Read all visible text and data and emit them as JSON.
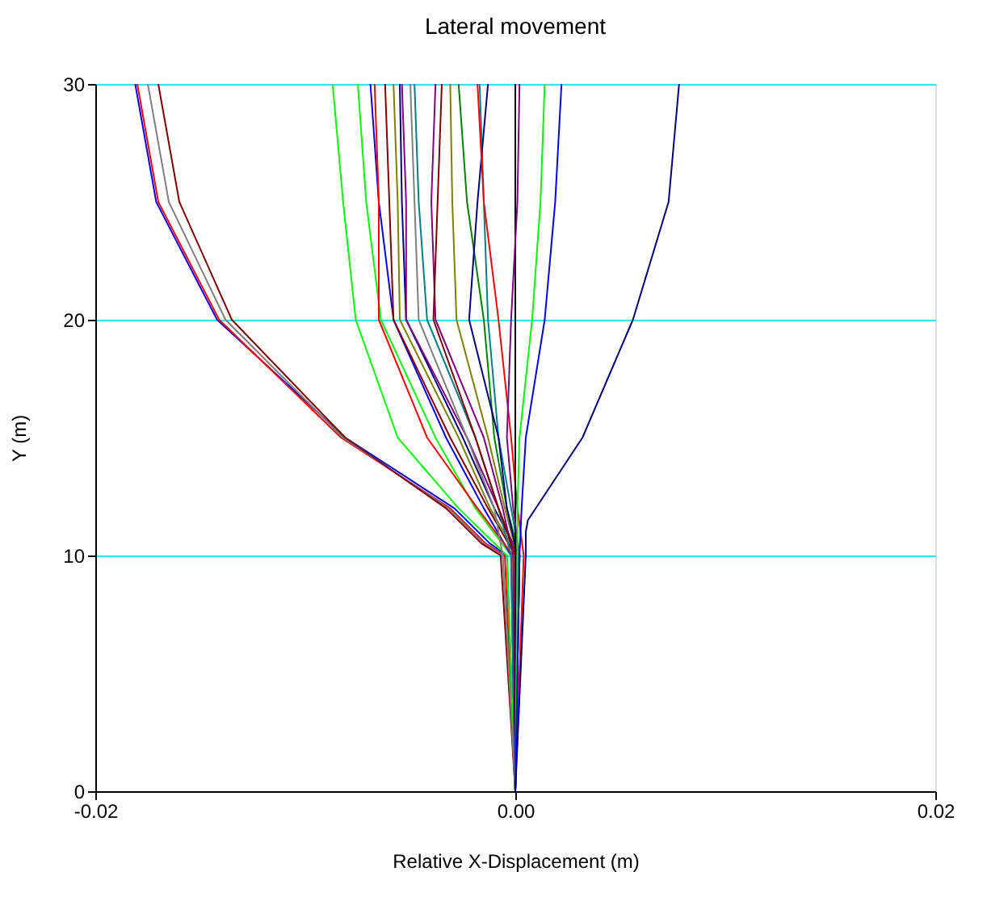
{
  "chart_data": {
    "type": "line",
    "title": "Lateral movement",
    "xlabel": "Relative X-Displacement (m)",
    "ylabel": "Y (m)",
    "xlim": [
      -0.02,
      0.02
    ],
    "xticks": [
      {
        "value": -0.02,
        "label": "-0.02"
      },
      {
        "value": 0,
        "label": "0.00"
      },
      {
        "value": 0.02,
        "label": "0.02"
      }
    ],
    "ylim": [
      0,
      30
    ],
    "yticks": [
      0,
      10,
      20,
      30
    ],
    "grid": "y",
    "legend": false,
    "series": [
      {
        "color": "#0000ff",
        "x": [
          0,
          -0.0004,
          -0.0012,
          -0.0029,
          -0.0081,
          -0.0142,
          -0.0171,
          -0.0181
        ],
        "values": [
          0,
          10,
          10.5,
          12,
          15,
          20,
          25,
          30
        ]
      },
      {
        "color": "#ff0000",
        "x": [
          0,
          -0.0005,
          -0.0014,
          -0.0031,
          -0.0083,
          -0.0141,
          -0.017,
          -0.018
        ],
        "values": [
          0,
          10,
          10.5,
          12,
          15,
          20,
          25,
          30
        ]
      },
      {
        "color": "#808080",
        "x": [
          0,
          -0.0006,
          -0.0015,
          -0.0032,
          -0.0082,
          -0.0138,
          -0.0165,
          -0.0175
        ],
        "values": [
          0,
          10,
          10.5,
          12,
          15,
          20,
          25,
          30
        ]
      },
      {
        "color": "#800000",
        "x": [
          0,
          -0.0007,
          -0.0016,
          -0.0033,
          -0.0081,
          -0.0135,
          -0.016,
          -0.017
        ],
        "values": [
          0,
          10,
          10.5,
          12,
          15,
          20,
          25,
          30
        ]
      },
      {
        "color": "#00ff00",
        "x": [
          0,
          -0.0004,
          -0.0027,
          -0.0056,
          -0.0076,
          -0.0082,
          -0.0087
        ],
        "values": [
          0,
          10,
          12,
          15,
          20,
          25,
          30
        ]
      },
      {
        "color": "#00ff00",
        "x": [
          0,
          -0.0002,
          -0.0019,
          -0.0038,
          -0.0064,
          -0.0071,
          -0.0075
        ],
        "values": [
          0,
          10,
          12,
          15,
          20,
          25,
          30
        ]
      },
      {
        "color": "#0000ff",
        "x": [
          0,
          -0.0002,
          -0.0015,
          -0.0033,
          -0.0058,
          -0.0065,
          -0.0069
        ],
        "values": [
          0,
          10,
          12,
          15,
          20,
          25,
          30
        ]
      },
      {
        "color": "#ff0000",
        "x": [
          0,
          -0.0001,
          -0.0018,
          -0.0042,
          -0.0065,
          -0.0065,
          -0.0067
        ],
        "values": [
          0,
          10,
          12,
          15,
          20,
          25,
          30
        ]
      },
      {
        "color": "#800000",
        "x": [
          0,
          0,
          -0.0013,
          -0.0031,
          -0.0058,
          -0.006,
          -0.0062
        ],
        "values": [
          0,
          10,
          12,
          15,
          20,
          25,
          30
        ]
      },
      {
        "color": "#808000",
        "x": [
          0,
          0.0001,
          -0.0012,
          -0.0027,
          -0.0055,
          -0.0056,
          -0.0058
        ],
        "values": [
          0,
          10,
          12,
          15,
          20,
          25,
          30
        ]
      },
      {
        "color": "#000080",
        "x": [
          0,
          0.0002,
          -0.001,
          -0.0025,
          -0.0052,
          -0.0054,
          -0.0055
        ],
        "values": [
          0,
          10,
          12,
          15,
          20,
          25,
          30
        ]
      },
      {
        "color": "#800080",
        "x": [
          0,
          0.0001,
          -0.0008,
          -0.0023,
          -0.0052,
          -0.0052,
          -0.0054
        ],
        "values": [
          0,
          10,
          12,
          15,
          20,
          25,
          30
        ]
      },
      {
        "color": "#808080",
        "x": [
          0,
          -0.0006,
          -0.001,
          -0.0023,
          -0.0046,
          -0.0048,
          -0.005
        ],
        "values": [
          0,
          10,
          12,
          15,
          20,
          25,
          30
        ]
      },
      {
        "color": "#008080",
        "x": [
          0,
          -0.0002,
          -0.0008,
          -0.0019,
          -0.0042,
          -0.0046,
          -0.0048
        ],
        "values": [
          0,
          10,
          12,
          15,
          20,
          25,
          30
        ]
      },
      {
        "color": "#800080",
        "x": [
          0,
          -0.0001,
          -0.0006,
          -0.0015,
          -0.0038,
          -0.004,
          -0.0038
        ],
        "values": [
          0,
          10,
          12,
          15,
          20,
          25,
          30
        ]
      },
      {
        "color": "#800000",
        "x": [
          0,
          0,
          -0.0008,
          -0.0019,
          -0.0039,
          -0.0037,
          -0.0035
        ],
        "values": [
          0,
          10,
          12,
          15,
          20,
          25,
          30
        ]
      },
      {
        "color": "#808000",
        "x": [
          0,
          0.0001,
          -0.0005,
          -0.0013,
          -0.0028,
          -0.003,
          -0.0031
        ],
        "values": [
          0,
          10,
          12,
          15,
          20,
          25,
          30
        ]
      },
      {
        "color": "#008000",
        "x": [
          0,
          0.0002,
          -0.0004,
          -0.001,
          -0.0015,
          -0.0023,
          -0.0027
        ],
        "values": [
          0,
          10,
          12,
          15,
          20,
          25,
          30
        ]
      },
      {
        "color": "#008080",
        "x": [
          0,
          0.0002,
          -0.0002,
          -0.0008,
          -0.0013,
          -0.0015,
          -0.0017
        ],
        "values": [
          0,
          10,
          12,
          15,
          20,
          25,
          30
        ]
      },
      {
        "color": "#000080",
        "x": [
          0,
          0.0001,
          -0.0004,
          -0.0008,
          -0.0022,
          -0.0018,
          -0.0013
        ],
        "values": [
          0,
          10,
          12,
          15,
          20,
          25,
          30
        ]
      },
      {
        "color": "#ff0000",
        "x": [
          0,
          0.0004,
          0.0001,
          -0.0002,
          -0.0008,
          -0.0015,
          -0.0018
        ],
        "values": [
          0,
          10,
          12,
          15,
          20,
          25,
          30
        ]
      },
      {
        "color": "#000000",
        "x": [
          0,
          0,
          0,
          0,
          0,
          0,
          0
        ],
        "values": [
          0,
          10,
          12,
          15,
          20,
          25,
          30
        ]
      },
      {
        "color": "#800080",
        "x": [
          0,
          0.0002,
          -0.0001,
          -0.0004,
          -0.0002,
          0.0001,
          0.0002
        ],
        "values": [
          0,
          10,
          12,
          15,
          20,
          25,
          30
        ]
      },
      {
        "color": "#00ff00",
        "x": [
          0,
          0.0001,
          0.0001,
          0.0002,
          0.0008,
          0.0012,
          0.0014
        ],
        "values": [
          0,
          10,
          12,
          15,
          20,
          25,
          30
        ]
      },
      {
        "color": "#0000ff",
        "x": [
          0,
          0.0002,
          0.0003,
          0.0005,
          0.0014,
          0.0019,
          0.0022
        ],
        "values": [
          0,
          10,
          12,
          15,
          20,
          25,
          30
        ]
      },
      {
        "color": "#000080",
        "x": [
          0,
          0.0005,
          0.0005,
          0.0006,
          0.0032,
          0.0056,
          0.0073,
          0.0078
        ],
        "values": [
          0,
          10,
          11,
          11.5,
          15,
          20,
          25,
          30
        ]
      }
    ]
  }
}
